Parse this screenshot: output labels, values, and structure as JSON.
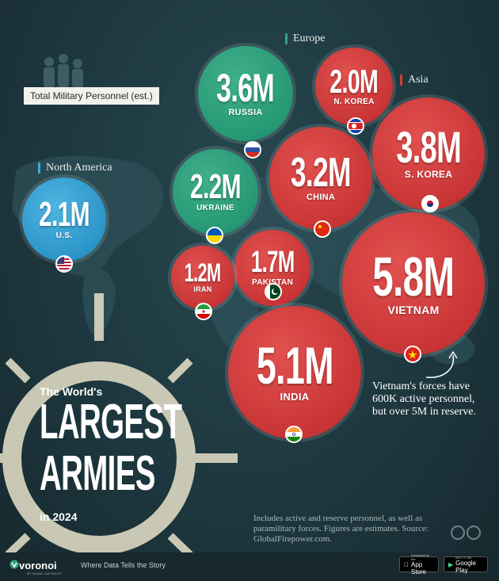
{
  "title": {
    "small": "The World's",
    "line1": "LARGEST",
    "line2": "ARMIES",
    "year": "in 2024"
  },
  "legend_label": "Total Military Personnel (est.)",
  "regions": {
    "europe": "Europe",
    "asia": "Asia",
    "north_america": "North America"
  },
  "note": "Vietnam's forces have 600K active personnel, but over 5M in reserve.",
  "footnote": "Includes active and reserve personnel, as well as paramilitary forces. Figures are estimates. Source: GlobalFirepower.com.",
  "footer": {
    "brand": "voronoi",
    "brand_sub": "BY VISUAL CAPITALIST",
    "tagline": "Where Data Tells the Story",
    "app_store_small": "Download on the",
    "app_store": "App Store",
    "google_play_small": "GET IT ON",
    "google_play": "Google Play"
  },
  "colors": {
    "europe": "#2ea57e",
    "asia": "#d13c3c",
    "north_america": "#3aa6d8"
  },
  "chart_data": {
    "type": "bubble",
    "unit": "M",
    "series": [
      {
        "country": "Vietnam",
        "label": "VIETNAM",
        "value": 5.8,
        "display": "5.8M",
        "region": "Asia"
      },
      {
        "country": "India",
        "label": "INDIA",
        "value": 5.1,
        "display": "5.1M",
        "region": "Asia"
      },
      {
        "country": "South Korea",
        "label": "S. KOREA",
        "value": 3.8,
        "display": "3.8M",
        "region": "Asia"
      },
      {
        "country": "Russia",
        "label": "RUSSIA",
        "value": 3.6,
        "display": "3.6M",
        "region": "Europe"
      },
      {
        "country": "China",
        "label": "CHINA",
        "value": 3.2,
        "display": "3.2M",
        "region": "Asia"
      },
      {
        "country": "Ukraine",
        "label": "UKRAINE",
        "value": 2.2,
        "display": "2.2M",
        "region": "Europe"
      },
      {
        "country": "U.S.",
        "label": "U.S.",
        "value": 2.1,
        "display": "2.1M",
        "region": "North America"
      },
      {
        "country": "North Korea",
        "label": "N. KOREA",
        "value": 2.0,
        "display": "2.0M",
        "region": "Asia"
      },
      {
        "country": "Pakistan",
        "label": "PAKISTAN",
        "value": 1.7,
        "display": "1.7M",
        "region": "Asia"
      },
      {
        "country": "Iran",
        "label": "IRAN",
        "value": 1.2,
        "display": "1.2M",
        "region": "Asia"
      }
    ]
  }
}
